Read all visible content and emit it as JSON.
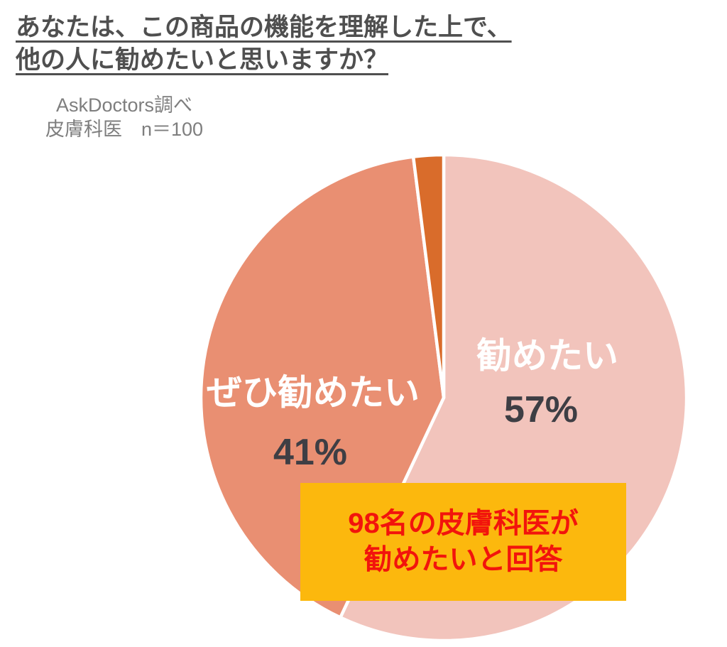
{
  "header": {
    "title_line1": "あなたは、この商品の機能を理解した上で、",
    "title_line2": "他の人に勧めたいと思いますか？",
    "source_line1": "AskDoctors調べ",
    "source_line2": "皮膚科医　n＝100"
  },
  "chart_data": {
    "type": "pie",
    "title": "あなたは、この商品の機能を理解した上で、他の人に勧めたいと思いますか？",
    "source": "AskDoctors調べ",
    "sample": "皮膚科医 n＝100",
    "n": 100,
    "start_angle_deg": 0,
    "direction": "clockwise",
    "slices": [
      {
        "label": "勧めたい",
        "value": 57,
        "pct_label": "57%",
        "color": "#F2C4BC"
      },
      {
        "label": "ぜひ勧めたい",
        "value": 41,
        "pct_label": "41%",
        "color": "#E98F72"
      },
      {
        "label": "",
        "value": 2,
        "pct_label": "",
        "color": "#D96C2B"
      }
    ],
    "separator_color": "#FFFFFF",
    "legend": "none",
    "annotation": {
      "line1": "98名の皮膚科医が",
      "line2": "勧めたいと回答",
      "bg": "#FCB80D",
      "color": "#F2140C"
    }
  }
}
